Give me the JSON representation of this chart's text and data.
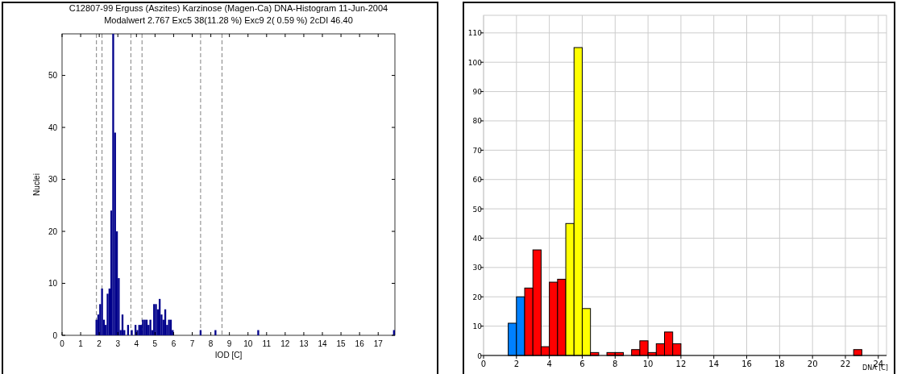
{
  "chart_data": [
    {
      "type": "histogram",
      "title": "C12807-99 Erguss (Aszites) Karzinose (Magen-Ca) DNA-Histogram 11-Jun-2004",
      "subtitle": "Modalwert 2.767 Exc5 38(11.28 %)  Exc9 2( 0.59 %)  2cDI 46.40",
      "xlabel": "IOD [C]",
      "ylabel": "Nuclei",
      "bins": [
        1.8,
        1.9,
        2.0,
        2.1,
        2.2,
        2.3,
        2.4,
        2.5,
        2.6,
        2.7,
        2.8,
        2.9,
        3.0,
        3.1,
        3.2,
        3.3,
        3.4,
        3.5,
        3.6,
        3.7,
        3.8,
        3.9,
        4.0,
        4.1,
        4.2,
        4.3,
        4.4,
        4.5,
        4.6,
        4.7,
        4.8,
        4.9,
        5.0,
        5.1,
        5.2,
        5.3,
        5.4,
        5.5,
        5.6,
        5.7,
        5.8,
        5.9,
        6.0,
        7.4,
        7.5,
        8.2,
        8.3,
        10.5,
        10.6,
        17.8,
        17.9
      ],
      "values": [
        3,
        4,
        6,
        9,
        3,
        2,
        8,
        9,
        24,
        58,
        39,
        20,
        11,
        1,
        4,
        1,
        0,
        2,
        0,
        1,
        0,
        2,
        1,
        2,
        2,
        3,
        3,
        3,
        2,
        3,
        1,
        6,
        6,
        5,
        7,
        4,
        3,
        5,
        2,
        3,
        3,
        1,
        0,
        1,
        0,
        1,
        0,
        1,
        0,
        1
      ],
      "color": "#00008b",
      "xlim": [
        0,
        17.9
      ],
      "ylim": [
        0,
        58
      ],
      "xticks": [
        0,
        1,
        2,
        3,
        4,
        5,
        6,
        7,
        8,
        9,
        10,
        11,
        12,
        13,
        14,
        15,
        16,
        17
      ],
      "yticks": [
        0,
        10,
        20,
        30,
        40,
        50
      ],
      "grid": false,
      "ref_lines": [
        {
          "axis": "x",
          "value": 1.85,
          "color": "#808080",
          "line_style": "dashed"
        },
        {
          "axis": "x",
          "value": 2.15,
          "color": "#808080",
          "line_style": "dashed"
        },
        {
          "axis": "x",
          "value": 3.7,
          "color": "#808080",
          "line_style": "dashed"
        },
        {
          "axis": "x",
          "value": 4.3,
          "color": "#808080",
          "line_style": "dashed"
        },
        {
          "axis": "x",
          "value": 7.45,
          "color": "#808080",
          "line_style": "dashed"
        },
        {
          "axis": "x",
          "value": 8.6,
          "color": "#808080",
          "line_style": "dashed"
        }
      ]
    },
    {
      "type": "histogram",
      "xlabel": "DNA [C]",
      "bins": [
        1.5,
        2,
        2.5,
        3,
        3.5,
        4,
        4.5,
        5,
        5.5,
        6,
        6.5,
        7,
        7.5,
        8,
        8.5,
        9,
        9.5,
        10,
        10.5,
        11,
        11.5,
        12,
        12.5,
        13,
        13.5,
        14,
        14.5,
        15,
        15.5,
        16,
        16.5,
        17,
        17.5,
        18,
        18.5,
        19,
        19.5,
        20,
        20.5,
        21,
        21.5,
        22,
        22.5,
        23
      ],
      "values": [
        11,
        20,
        23,
        36,
        3,
        25,
        26,
        45,
        105,
        16,
        1,
        0,
        1,
        1,
        0,
        2,
        5,
        1,
        4,
        8,
        4,
        0,
        0,
        0,
        0,
        0,
        0,
        0,
        0,
        0,
        0,
        0,
        0,
        0,
        0,
        0,
        0,
        0,
        0,
        0,
        0,
        0,
        2
      ],
      "colors": [
        "#0080ff",
        "#0080ff",
        "#ff0000",
        "#ff0000",
        "#ff0000",
        "#ff0000",
        "#ff0000",
        "#ffff00",
        "#ffff00",
        "#ffff00",
        "#ff0000",
        "#ff0000",
        "#ff0000",
        "#ff0000",
        "#ff0000",
        "#ff0000",
        "#ff0000",
        "#ff0000",
        "#ff0000",
        "#ff0000",
        "#ff0000",
        "#ff0000",
        "#ff0000",
        "#ff0000",
        "#ff0000",
        "#ff0000",
        "#ff0000",
        "#ff0000",
        "#ff0000",
        "#ff0000",
        "#ff0000",
        "#ff0000",
        "#ff0000",
        "#ff0000",
        "#ff0000",
        "#ff0000",
        "#ff0000",
        "#ff0000",
        "#ff0000",
        "#ff0000",
        "#ff0000",
        "#ff0000",
        "#ff0000"
      ],
      "xlim": [
        0,
        24.5
      ],
      "ylim": [
        0,
        116
      ],
      "xticks": [
        0,
        2,
        4,
        6,
        8,
        10,
        12,
        14,
        16,
        18,
        20,
        22,
        24
      ],
      "yticks": [
        0,
        10,
        20,
        30,
        40,
        50,
        60,
        70,
        80,
        90,
        100,
        110
      ],
      "grid": true
    }
  ]
}
